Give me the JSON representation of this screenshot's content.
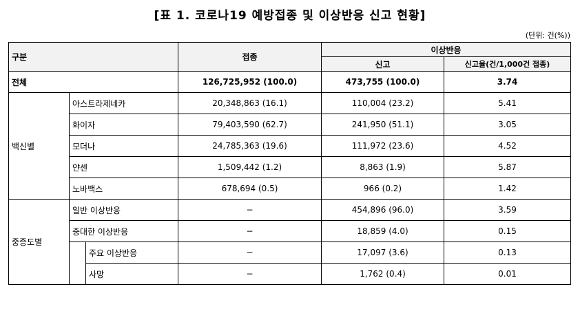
{
  "title": "[표 1. 코로나19 예방접종 및 이상반응 신고 현황]",
  "unit": "(단위: 건(%))",
  "header": {
    "category": "구분",
    "vaccination": "접종",
    "adverse": "이상반응",
    "report": "신고",
    "report_rate": "신고율(건/1,000건 접종)"
  },
  "total": {
    "label": "전체",
    "vaccination": "126,725,952 (100.0)",
    "report": "473,755 (100.0)",
    "rate": "3.74"
  },
  "by_vaccine": {
    "group": "백신별",
    "rows": [
      {
        "name": "아스트라제네카",
        "vaccination": "20,348,863 (16.1)",
        "report": "110,004 (23.2)",
        "rate": "5.41"
      },
      {
        "name": "화이자",
        "vaccination": "79,403,590 (62.7)",
        "report": "241,950 (51.1)",
        "rate": "3.05"
      },
      {
        "name": "모더나",
        "vaccination": "24,785,363 (19.6)",
        "report": "111,972 (23.6)",
        "rate": "4.52"
      },
      {
        "name": "얀센",
        "vaccination": "1,509,442 (1.2)",
        "report": "8,863 (1.9)",
        "rate": "5.87"
      },
      {
        "name": "노바백스",
        "vaccination": "678,694 (0.5)",
        "report": "966 (0.2)",
        "rate": "1.42"
      }
    ]
  },
  "by_severity": {
    "group": "중증도별",
    "general": {
      "name": "일반 이상반응",
      "vaccination": "−",
      "report": "454,896 (96.0)",
      "rate": "3.59"
    },
    "serious": {
      "name": "중대한 이상반응",
      "vaccination": "−",
      "report": "18,859 (4.0)",
      "rate": "0.15"
    },
    "major": {
      "name": "주요 이상반응",
      "vaccination": "−",
      "report": "17,097 (3.6)",
      "rate": "0.13"
    },
    "death": {
      "name": "사망",
      "vaccination": "−",
      "report": "1,762 (0.4)",
      "rate": "0.01"
    }
  }
}
